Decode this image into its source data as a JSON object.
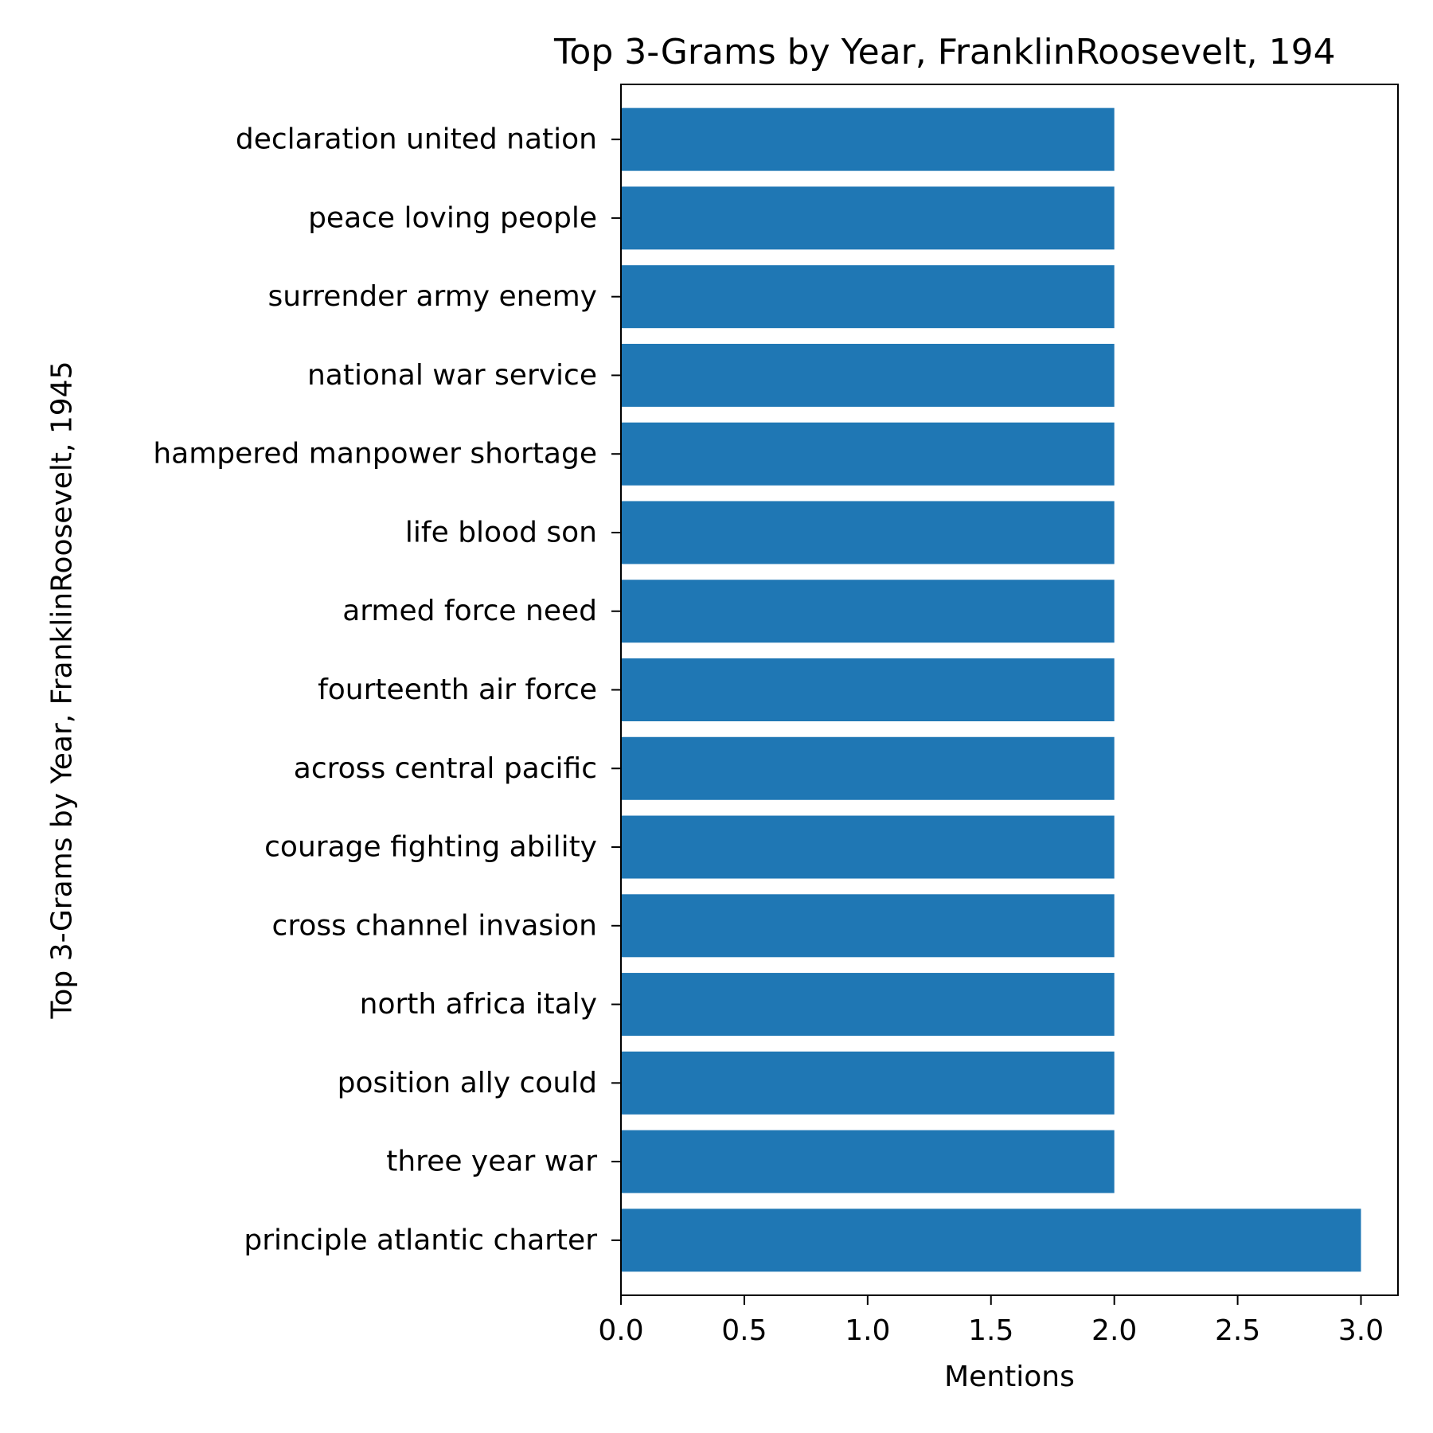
{
  "chart_data": {
    "type": "bar",
    "orientation": "horizontal",
    "title": "Top 3-Grams by Year, FranklinRoosevelt, 194",
    "xlabel": "Mentions",
    "ylabel": "Top 3-Grams by Year, FranklinRoosevelt, 1945",
    "categories": [
      "principle atlantic charter",
      "three year war",
      "position ally could",
      "north africa italy",
      "cross channel invasion",
      "courage fighting ability",
      "across central pacific",
      "fourteenth air force",
      "armed force need",
      "life blood son",
      "hampered manpower shortage",
      "national war service",
      "surrender army enemy",
      "peace loving people",
      "declaration united nation"
    ],
    "values": [
      3,
      2,
      2,
      2,
      2,
      2,
      2,
      2,
      2,
      2,
      2,
      2,
      2,
      2,
      2
    ],
    "xlim": [
      0,
      3.15
    ],
    "xticks": [
      "0.0",
      "0.5",
      "1.0",
      "1.5",
      "2.0",
      "2.5",
      "3.0"
    ],
    "bar_color": "#1f77b4",
    "grid": false,
    "legend": "none"
  }
}
